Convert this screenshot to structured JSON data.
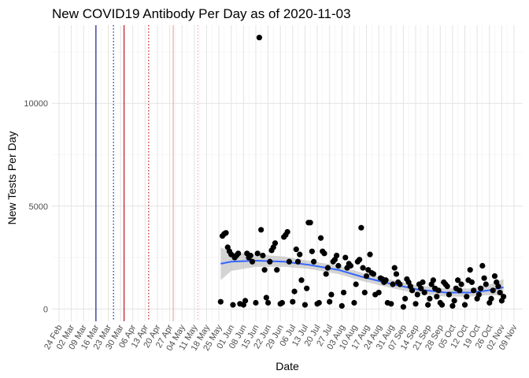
{
  "chart_data": {
    "type": "scatter",
    "title": "New COVID19 Antibody Per Day as of 2020-11-03",
    "xlabel": "Date",
    "ylabel": "New Tests Per Day",
    "x_axis": {
      "type": "date",
      "range": [
        "2020-02-24",
        "2020-11-09"
      ]
    },
    "ylim": [
      -600,
      13800
    ],
    "grid": true,
    "x_ticks": [
      "24 Feb",
      "02 Mar",
      "09 Mar",
      "16 Mar",
      "23 Mar",
      "30 Mar",
      "06 Apr",
      "13 Apr",
      "20 Apr",
      "27 Apr",
      "04 May",
      "11 May",
      "18 May",
      "25 May",
      "01 Jun",
      "08 Jun",
      "15 Jun",
      "22 Jun",
      "29 Jun",
      "06 Jul",
      "13 Jul",
      "20 Jul",
      "27 Jul",
      "03 Aug",
      "10 Aug",
      "17 Aug",
      "24 Aug",
      "31 Aug",
      "07 Sep",
      "14 Sep",
      "21 Sep",
      "28 Sep",
      "05 Oct",
      "12 Oct",
      "19 Oct",
      "26 Oct",
      "02 Nov",
      "09 Nov"
    ],
    "x_tick_dates": [
      "2020-02-24",
      "2020-03-02",
      "2020-03-09",
      "2020-03-16",
      "2020-03-23",
      "2020-03-30",
      "2020-04-06",
      "2020-04-13",
      "2020-04-20",
      "2020-04-27",
      "2020-05-04",
      "2020-05-11",
      "2020-05-18",
      "2020-05-25",
      "2020-06-01",
      "2020-06-08",
      "2020-06-15",
      "2020-06-22",
      "2020-06-29",
      "2020-07-06",
      "2020-07-13",
      "2020-07-20",
      "2020-07-27",
      "2020-08-03",
      "2020-08-10",
      "2020-08-17",
      "2020-08-24",
      "2020-08-31",
      "2020-09-07",
      "2020-09-14",
      "2020-09-21",
      "2020-09-28",
      "2020-10-05",
      "2020-10-12",
      "2020-10-19",
      "2020-10-26",
      "2020-11-02",
      "2020-11-09"
    ],
    "y_ticks": [
      0,
      5000,
      10000
    ],
    "reference_lines": [
      {
        "date": "2020-03-16",
        "color": "#1a1a8c",
        "style": "solid"
      },
      {
        "date": "2020-03-26",
        "color": "#1a1a8c",
        "style": "dotted"
      },
      {
        "date": "2020-04-01",
        "color": "#c0171c",
        "style": "solid"
      },
      {
        "date": "2020-04-15",
        "color": "#c0171c",
        "style": "dotted"
      },
      {
        "date": "2020-04-29",
        "color": "#f4a6a6",
        "style": "solid"
      },
      {
        "date": "2020-05-13",
        "color": "#f4a6a6",
        "style": "dotted"
      }
    ],
    "series": [
      {
        "point_color": "#000000",
        "points": [
          [
            "2020-05-26",
            350
          ],
          [
            "2020-05-27",
            3550
          ],
          [
            "2020-05-28",
            3650
          ],
          [
            "2020-05-29",
            3700
          ],
          [
            "2020-05-30",
            3000
          ],
          [
            "2020-05-31",
            2800
          ],
          [
            "2020-06-01",
            2650
          ],
          [
            "2020-06-02",
            200
          ],
          [
            "2020-06-03",
            2500
          ],
          [
            "2020-06-04",
            2600
          ],
          [
            "2020-06-05",
            2700
          ],
          [
            "2020-06-06",
            250
          ],
          [
            "2020-06-08",
            200
          ],
          [
            "2020-06-09",
            400
          ],
          [
            "2020-06-10",
            2700
          ],
          [
            "2020-06-11",
            2500
          ],
          [
            "2020-06-12",
            2600
          ],
          [
            "2020-06-13",
            2300
          ],
          [
            "2020-06-15",
            300
          ],
          [
            "2020-06-16",
            2700
          ],
          [
            "2020-06-17",
            13200
          ],
          [
            "2020-06-18",
            3850
          ],
          [
            "2020-06-19",
            2600
          ],
          [
            "2020-06-20",
            1900
          ],
          [
            "2020-06-21",
            550
          ],
          [
            "2020-06-22",
            300
          ],
          [
            "2020-06-23",
            2300
          ],
          [
            "2020-06-24",
            2850
          ],
          [
            "2020-06-25",
            3000
          ],
          [
            "2020-06-26",
            3200
          ],
          [
            "2020-06-27",
            1900
          ],
          [
            "2020-06-29",
            250
          ],
          [
            "2020-06-30",
            300
          ],
          [
            "2020-07-01",
            3500
          ],
          [
            "2020-07-02",
            3600
          ],
          [
            "2020-07-03",
            3750
          ],
          [
            "2020-07-04",
            2300
          ],
          [
            "2020-07-06",
            350
          ],
          [
            "2020-07-07",
            850
          ],
          [
            "2020-07-08",
            2900
          ],
          [
            "2020-07-09",
            2300
          ],
          [
            "2020-07-10",
            2650
          ],
          [
            "2020-07-11",
            1400
          ],
          [
            "2020-07-13",
            200
          ],
          [
            "2020-07-14",
            1000
          ],
          [
            "2020-07-15",
            4200
          ],
          [
            "2020-07-16",
            4200
          ],
          [
            "2020-07-17",
            2800
          ],
          [
            "2020-07-18",
            2300
          ],
          [
            "2020-07-20",
            250
          ],
          [
            "2020-07-21",
            300
          ],
          [
            "2020-07-22",
            3450
          ],
          [
            "2020-07-23",
            2800
          ],
          [
            "2020-07-24",
            2700
          ],
          [
            "2020-07-25",
            1700
          ],
          [
            "2020-07-26",
            2000
          ],
          [
            "2020-07-27",
            350
          ],
          [
            "2020-07-28",
            700
          ],
          [
            "2020-07-29",
            2300
          ],
          [
            "2020-07-30",
            2400
          ],
          [
            "2020-07-31",
            2600
          ],
          [
            "2020-08-01",
            2100
          ],
          [
            "2020-08-03",
            150
          ],
          [
            "2020-08-04",
            800
          ],
          [
            "2020-08-05",
            2500
          ],
          [
            "2020-08-06",
            2000
          ],
          [
            "2020-08-07",
            2200
          ],
          [
            "2020-08-08",
            2100
          ],
          [
            "2020-08-10",
            300
          ],
          [
            "2020-08-11",
            1200
          ],
          [
            "2020-08-12",
            2300
          ],
          [
            "2020-08-13",
            2400
          ],
          [
            "2020-08-14",
            3950
          ],
          [
            "2020-08-15",
            2000
          ],
          [
            "2020-08-16",
            800
          ],
          [
            "2020-08-17",
            1600
          ],
          [
            "2020-08-18",
            1900
          ],
          [
            "2020-08-19",
            2650
          ],
          [
            "2020-08-20",
            1750
          ],
          [
            "2020-08-21",
            1700
          ],
          [
            "2020-08-22",
            700
          ],
          [
            "2020-08-24",
            800
          ],
          [
            "2020-08-25",
            1500
          ],
          [
            "2020-08-26",
            1450
          ],
          [
            "2020-08-27",
            1300
          ],
          [
            "2020-08-28",
            1400
          ],
          [
            "2020-08-29",
            300
          ],
          [
            "2020-08-31",
            250
          ],
          [
            "2020-09-01",
            1200
          ],
          [
            "2020-09-02",
            2000
          ],
          [
            "2020-09-03",
            1700
          ],
          [
            "2020-09-04",
            1300
          ],
          [
            "2020-09-05",
            1200
          ],
          [
            "2020-09-07",
            100
          ],
          [
            "2020-09-08",
            500
          ],
          [
            "2020-09-09",
            1450
          ],
          [
            "2020-09-10",
            1300
          ],
          [
            "2020-09-11",
            1100
          ],
          [
            "2020-09-12",
            900
          ],
          [
            "2020-09-14",
            250
          ],
          [
            "2020-09-15",
            700
          ],
          [
            "2020-09-16",
            1200
          ],
          [
            "2020-09-17",
            1000
          ],
          [
            "2020-09-18",
            1300
          ],
          [
            "2020-09-19",
            800
          ],
          [
            "2020-09-21",
            200
          ],
          [
            "2020-09-22",
            500
          ],
          [
            "2020-09-23",
            1200
          ],
          [
            "2020-09-24",
            1400
          ],
          [
            "2020-09-25",
            1000
          ],
          [
            "2020-09-26",
            600
          ],
          [
            "2020-09-27",
            900
          ],
          [
            "2020-09-28",
            300
          ],
          [
            "2020-09-29",
            200
          ],
          [
            "2020-09-30",
            1300
          ],
          [
            "2020-10-01",
            1200
          ],
          [
            "2020-10-02",
            1100
          ],
          [
            "2020-10-03",
            700
          ],
          [
            "2020-10-05",
            150
          ],
          [
            "2020-10-06",
            400
          ],
          [
            "2020-10-07",
            1000
          ],
          [
            "2020-10-08",
            1400
          ],
          [
            "2020-10-09",
            900
          ],
          [
            "2020-10-10",
            1200
          ],
          [
            "2020-10-12",
            200
          ],
          [
            "2020-10-13",
            600
          ],
          [
            "2020-10-14",
            1400
          ],
          [
            "2020-10-15",
            1900
          ],
          [
            "2020-10-16",
            1300
          ],
          [
            "2020-10-17",
            900
          ],
          [
            "2020-10-19",
            500
          ],
          [
            "2020-10-20",
            700
          ],
          [
            "2020-10-21",
            1000
          ],
          [
            "2020-10-22",
            2100
          ],
          [
            "2020-10-23",
            1500
          ],
          [
            "2020-10-24",
            1200
          ],
          [
            "2020-10-26",
            300
          ],
          [
            "2020-10-27",
            500
          ],
          [
            "2020-10-28",
            900
          ],
          [
            "2020-10-29",
            1600
          ],
          [
            "2020-10-30",
            1300
          ],
          [
            "2020-10-31",
            1100
          ],
          [
            "2020-11-01",
            800
          ],
          [
            "2020-11-02",
            400
          ],
          [
            "2020-11-03",
            600
          ]
        ],
        "trend": {
          "color": "#3366ff",
          "band_color": "#bdbdbd",
          "points": [
            [
              "2020-05-26",
              2200,
              1400,
              3000
            ],
            [
              "2020-06-01",
              2300,
              1850,
              2750
            ],
            [
              "2020-06-15",
              2350,
              2050,
              2650
            ],
            [
              "2020-07-01",
              2300,
              2050,
              2550
            ],
            [
              "2020-07-15",
              2150,
              1950,
              2350
            ],
            [
              "2020-08-01",
              1900,
              1700,
              2100
            ],
            [
              "2020-08-15",
              1550,
              1350,
              1750
            ],
            [
              "2020-09-01",
              1200,
              1000,
              1400
            ],
            [
              "2020-09-15",
              950,
              750,
              1150
            ],
            [
              "2020-10-01",
              800,
              600,
              1000
            ],
            [
              "2020-10-15",
              800,
              600,
              1000
            ],
            [
              "2020-10-25",
              900,
              680,
              1150
            ],
            [
              "2020-11-03",
              1050,
              650,
              1450
            ]
          ]
        }
      }
    ]
  }
}
